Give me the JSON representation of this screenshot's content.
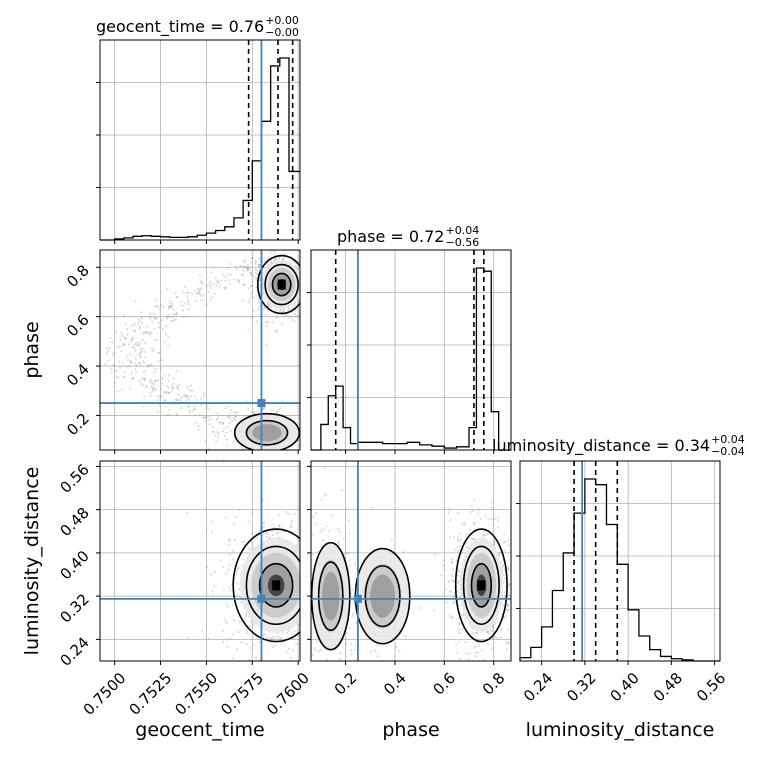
{
  "chart_data": {
    "type": "corner",
    "parameters": [
      "geocent_time",
      "phase",
      "luminosity_distance"
    ],
    "truths": {
      "geocent_time": 0.758,
      "phase": 0.25,
      "luminosity_distance": 0.315
    },
    "titles": [
      {
        "param": "geocent_time",
        "text": "geocent_time = 0.76",
        "plus": "+0.00",
        "minus": "−0.00"
      },
      {
        "param": "phase",
        "text": "phase = 0.72",
        "plus": "+0.04",
        "minus": "−0.56"
      },
      {
        "param": "luminosity_distance",
        "text": "luminosity_distance = 0.34",
        "plus": "+0.04",
        "minus": "−0.04"
      }
    ],
    "axes": {
      "geocent_time": {
        "range": [
          0.7492,
          0.7601
        ],
        "ticks": [
          "0.7500",
          "0.7525",
          "0.7550",
          "0.7575",
          "0.7600"
        ],
        "tick_values": [
          0.75,
          0.7525,
          0.755,
          0.7575,
          0.76
        ]
      },
      "phase": {
        "range": [
          0.06,
          0.87
        ],
        "ticks": [
          "0.2",
          "0.4",
          "0.6",
          "0.8"
        ],
        "tick_values": [
          0.2,
          0.4,
          0.6,
          0.8
        ]
      },
      "luminosity_distance": {
        "range": [
          0.2,
          0.57
        ],
        "ticks": [
          "0.24",
          "0.32",
          "0.40",
          "0.48",
          "0.56"
        ],
        "tick_values": [
          0.24,
          0.32,
          0.4,
          0.48,
          0.56
        ]
      }
    },
    "histograms": {
      "geocent_time": {
        "edges": [
          0.7492,
          0.75,
          0.7505,
          0.751,
          0.7515,
          0.752,
          0.7525,
          0.753,
          0.7535,
          0.754,
          0.7545,
          0.755,
          0.7555,
          0.756,
          0.7565,
          0.757,
          0.7575,
          0.758,
          0.7585,
          0.759,
          0.7595,
          0.7601
        ],
        "counts": [
          0,
          2,
          4,
          7,
          8,
          7,
          6,
          5,
          5,
          6,
          9,
          13,
          18,
          25,
          42,
          75,
          150,
          225,
          330,
          345,
          130
        ],
        "quantiles": [
          0.7573,
          0.7589,
          0.7597
        ]
      },
      "phase": {
        "edges": [
          0.06,
          0.1,
          0.13,
          0.16,
          0.19,
          0.22,
          0.25,
          0.3,
          0.35,
          0.4,
          0.45,
          0.5,
          0.55,
          0.6,
          0.65,
          0.7,
          0.73,
          0.76,
          0.79,
          0.82,
          0.87
        ],
        "counts": [
          0,
          40,
          85,
          100,
          35,
          10,
          12,
          12,
          10,
          10,
          12,
          8,
          6,
          3,
          5,
          35,
          285,
          280,
          60,
          0
        ],
        "quantiles": [
          0.16,
          0.72,
          0.76
        ]
      },
      "luminosity_distance": {
        "edges": [
          0.2,
          0.22,
          0.24,
          0.26,
          0.28,
          0.3,
          0.32,
          0.34,
          0.36,
          0.38,
          0.4,
          0.42,
          0.44,
          0.46,
          0.48,
          0.5,
          0.52,
          0.54,
          0.57
        ],
        "counts": [
          3,
          12,
          30,
          62,
          95,
          130,
          160,
          155,
          120,
          85,
          45,
          22,
          10,
          4,
          2,
          1,
          0,
          0
        ],
        "quantiles": [
          0.3,
          0.34,
          0.38
        ]
      }
    },
    "pairs": [
      {
        "x": "geocent_time",
        "y": "phase",
        "modes": [
          {
            "cx": 0.7591,
            "cy": 0.73,
            "sx": 0.0005,
            "sy": 0.045,
            "n": 500
          },
          {
            "cx": 0.7583,
            "cy": 0.13,
            "sx": 0.0008,
            "sy": 0.035,
            "n": 300
          }
        ],
        "arc": true
      },
      {
        "x": "geocent_time",
        "y": "luminosity_distance",
        "modes": [
          {
            "cx": 0.7588,
            "cy": 0.34,
            "sx": 0.0009,
            "sy": 0.04,
            "n": 700
          }
        ]
      },
      {
        "x": "phase",
        "y": "luminosity_distance",
        "modes": [
          {
            "cx": 0.75,
            "cy": 0.34,
            "sx": 0.04,
            "sy": 0.04,
            "n": 600
          },
          {
            "cx": 0.14,
            "cy": 0.32,
            "sx": 0.035,
            "sy": 0.045,
            "n": 250
          },
          {
            "cx": 0.35,
            "cy": 0.32,
            "sx": 0.05,
            "sy": 0.04,
            "n": 60
          }
        ]
      }
    ],
    "grid": true
  }
}
